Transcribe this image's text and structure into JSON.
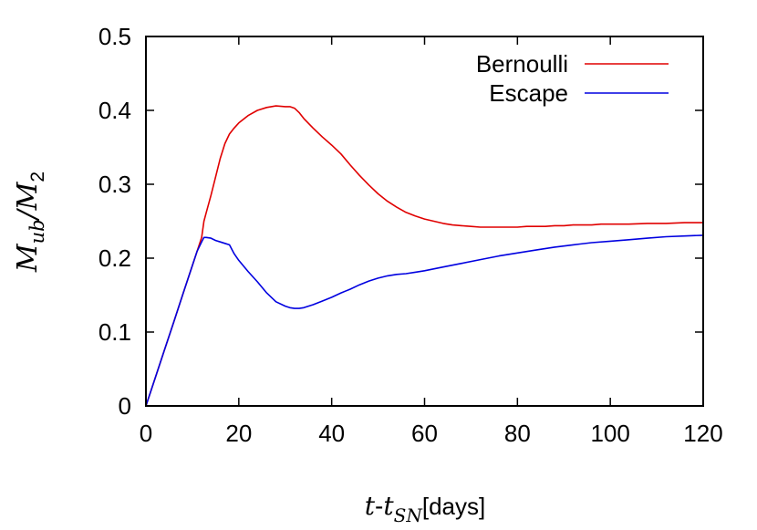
{
  "chart_data": {
    "type": "line",
    "xlabel": {
      "t": "t",
      "dash": "-",
      "tsub_base": "t",
      "sub": "SN",
      "unit": "[days]"
    },
    "ylabel": {
      "num_base": "M",
      "num_sub": "ub",
      "slash": "/",
      "den_base": "M",
      "den_sub": "2"
    },
    "xlim": [
      0,
      120
    ],
    "ylim": [
      0,
      0.5
    ],
    "xticks": [
      0,
      20,
      40,
      60,
      80,
      100,
      120
    ],
    "xtick_labels": [
      "0",
      "20",
      "40",
      "60",
      "80",
      "100",
      "120"
    ],
    "yticks": [
      0,
      0.1,
      0.2,
      0.3,
      0.4,
      0.5
    ],
    "ytick_labels": [
      "0",
      "0.1",
      "0.2",
      "0.3",
      "0.4",
      "0.5"
    ],
    "grid": false,
    "legend_position": "top-right",
    "series": [
      {
        "name": "Bernoulli",
        "color": "#e00000",
        "x": [
          0,
          2,
          4,
          6,
          8,
          10,
          11,
          12,
          12.5,
          13,
          14,
          15,
          16,
          17,
          18,
          19,
          20,
          22,
          24,
          26,
          28,
          30,
          31,
          32,
          33,
          34,
          36,
          38,
          40,
          41,
          42,
          44,
          46,
          48,
          50,
          52,
          54,
          56,
          58,
          60,
          62,
          64,
          66,
          68,
          70,
          72,
          74,
          76,
          78,
          80,
          82,
          84,
          86,
          88,
          90,
          92,
          94,
          96,
          98,
          100,
          104,
          108,
          112,
          116,
          120
        ],
        "y": [
          0,
          0.038,
          0.076,
          0.114,
          0.152,
          0.19,
          0.209,
          0.228,
          0.25,
          0.262,
          0.285,
          0.31,
          0.335,
          0.355,
          0.368,
          0.376,
          0.383,
          0.393,
          0.4,
          0.404,
          0.406,
          0.405,
          0.405,
          0.403,
          0.397,
          0.389,
          0.376,
          0.364,
          0.353,
          0.347,
          0.341,
          0.326,
          0.312,
          0.299,
          0.287,
          0.277,
          0.269,
          0.262,
          0.257,
          0.253,
          0.25,
          0.247,
          0.245,
          0.244,
          0.243,
          0.242,
          0.242,
          0.242,
          0.242,
          0.242,
          0.243,
          0.243,
          0.243,
          0.244,
          0.244,
          0.245,
          0.245,
          0.245,
          0.246,
          0.246,
          0.246,
          0.247,
          0.247,
          0.248,
          0.248
        ]
      },
      {
        "name": "Escape",
        "color": "#0000e0",
        "x": [
          0,
          2,
          4,
          6,
          8,
          10,
          11,
          12,
          12.5,
          13,
          14,
          15,
          16,
          17,
          18,
          19,
          20,
          22,
          24,
          26,
          28,
          30,
          31,
          32,
          33,
          34,
          36,
          38,
          40,
          42,
          44,
          46,
          48,
          50,
          52,
          54,
          56,
          58,
          60,
          64,
          68,
          72,
          76,
          80,
          84,
          88,
          92,
          96,
          100,
          104,
          108,
          112,
          116,
          120
        ],
        "y": [
          0,
          0.038,
          0.076,
          0.114,
          0.152,
          0.19,
          0.209,
          0.222,
          0.228,
          0.228,
          0.227,
          0.224,
          0.222,
          0.22,
          0.218,
          0.206,
          0.197,
          0.182,
          0.168,
          0.153,
          0.141,
          0.135,
          0.133,
          0.132,
          0.132,
          0.133,
          0.137,
          0.142,
          0.147,
          0.153,
          0.158,
          0.164,
          0.169,
          0.173,
          0.176,
          0.178,
          0.179,
          0.181,
          0.183,
          0.188,
          0.193,
          0.198,
          0.203,
          0.207,
          0.211,
          0.215,
          0.218,
          0.221,
          0.223,
          0.225,
          0.227,
          0.229,
          0.23,
          0.231
        ]
      }
    ]
  }
}
